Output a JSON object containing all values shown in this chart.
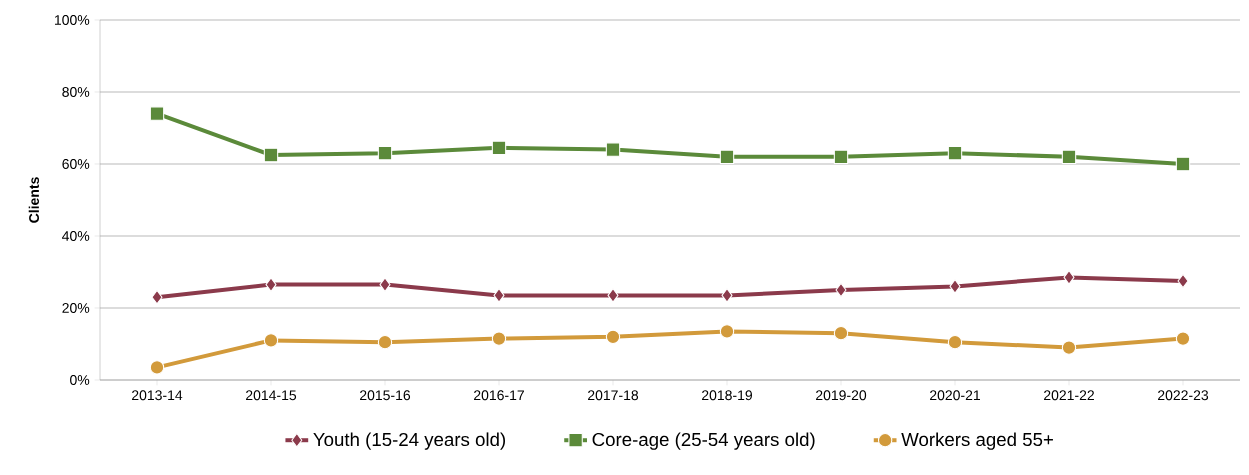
{
  "chart_data": {
    "type": "line",
    "ylabel": "Clients",
    "categories": [
      "2013-14",
      "2014-15",
      "2015-16",
      "2016-17",
      "2017-18",
      "2018-19",
      "2019-20",
      "2020-21",
      "2021-22",
      "2022-23"
    ],
    "series": [
      {
        "name": "Youth (15-24 years old)",
        "color": "#8b3a4b",
        "marker": "diamond",
        "values": [
          23,
          26.5,
          26.5,
          23.5,
          23.5,
          23.5,
          25,
          26,
          28.5,
          27.5
        ]
      },
      {
        "name": "Core-age (25-54 years old)",
        "color": "#5b8a3a",
        "marker": "square",
        "values": [
          74,
          62.5,
          63,
          64.5,
          64,
          62,
          62,
          63,
          62,
          60
        ]
      },
      {
        "name": "Workers aged 55+",
        "color": "#d29a3b",
        "marker": "circle",
        "values": [
          3.5,
          11,
          10.5,
          11.5,
          12,
          13.5,
          13,
          10.5,
          9,
          11.5
        ]
      }
    ],
    "ylim": [
      0,
      100
    ],
    "yticks": [
      {
        "value": 0,
        "label": "0%"
      },
      {
        "value": 20,
        "label": "20%"
      },
      {
        "value": 40,
        "label": "40%"
      },
      {
        "value": 60,
        "label": "60%"
      },
      {
        "value": 80,
        "label": "80%"
      },
      {
        "value": 100,
        "label": "100%"
      }
    ],
    "grid": "y",
    "legend": "bottom",
    "line_style": "solid"
  }
}
